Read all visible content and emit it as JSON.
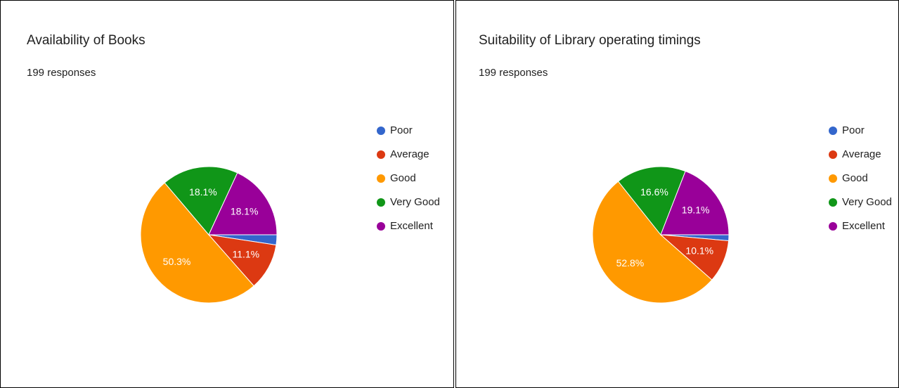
{
  "chart_data": [
    {
      "type": "pie",
      "title": "Availability of Books",
      "subtitle": "199 responses",
      "categories": [
        "Poor",
        "Average",
        "Good",
        "Very Good",
        "Excellent"
      ],
      "values": [
        2.4,
        11.1,
        50.3,
        18.1,
        18.1
      ],
      "value_labels": [
        null,
        "11.1%",
        "50.3%",
        "18.1%",
        "18.1%"
      ],
      "colors": [
        "#3366cc",
        "#dc3912",
        "#ff9900",
        "#109618",
        "#990099"
      ]
    },
    {
      "type": "pie",
      "title": "Suitability of Library operating timings",
      "subtitle": "199 responses",
      "categories": [
        "Poor",
        "Average",
        "Good",
        "Very Good",
        "Excellent"
      ],
      "values": [
        1.4,
        10.1,
        52.8,
        16.6,
        19.1
      ],
      "value_labels": [
        null,
        "10.1%",
        "52.8%",
        "16.6%",
        "19.1%"
      ],
      "colors": [
        "#3366cc",
        "#dc3912",
        "#ff9900",
        "#109618",
        "#990099"
      ]
    }
  ]
}
